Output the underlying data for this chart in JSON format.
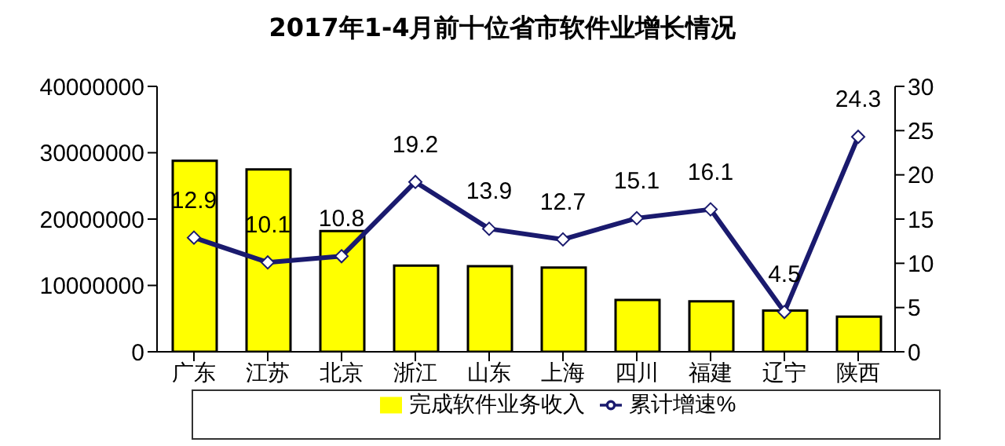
{
  "chart_data": {
    "type": "bar",
    "title": "2017年1-4月前十位省市软件业增长情况",
    "categories": [
      "广东",
      "江苏",
      "北京",
      "浙江",
      "山东",
      "上海",
      "四川",
      "福建",
      "辽宁",
      "陕西"
    ],
    "series": [
      {
        "name": "完成软件业务收入",
        "color": "#ffff00",
        "values": [
          28800000,
          27500000,
          18200000,
          13000000,
          12900000,
          12700000,
          7800000,
          7600000,
          6200000,
          5300000
        ]
      },
      {
        "name": "累计增速%",
        "type": "line",
        "axis": "y2",
        "color": "#1a1a6e",
        "marker": "diamond",
        "data_labels": true,
        "values": [
          12.9,
          10.1,
          10.8,
          19.2,
          13.9,
          12.7,
          15.1,
          16.1,
          4.5,
          24.3
        ]
      }
    ],
    "ylim": [
      0,
      40000000
    ],
    "yticks": [
      0,
      10000000,
      20000000,
      30000000,
      40000000
    ],
    "y2lim": [
      0,
      30
    ],
    "y2ticks": [
      0,
      5,
      10,
      15,
      20,
      25,
      30
    ],
    "grid": false,
    "legend": "bottom"
  }
}
